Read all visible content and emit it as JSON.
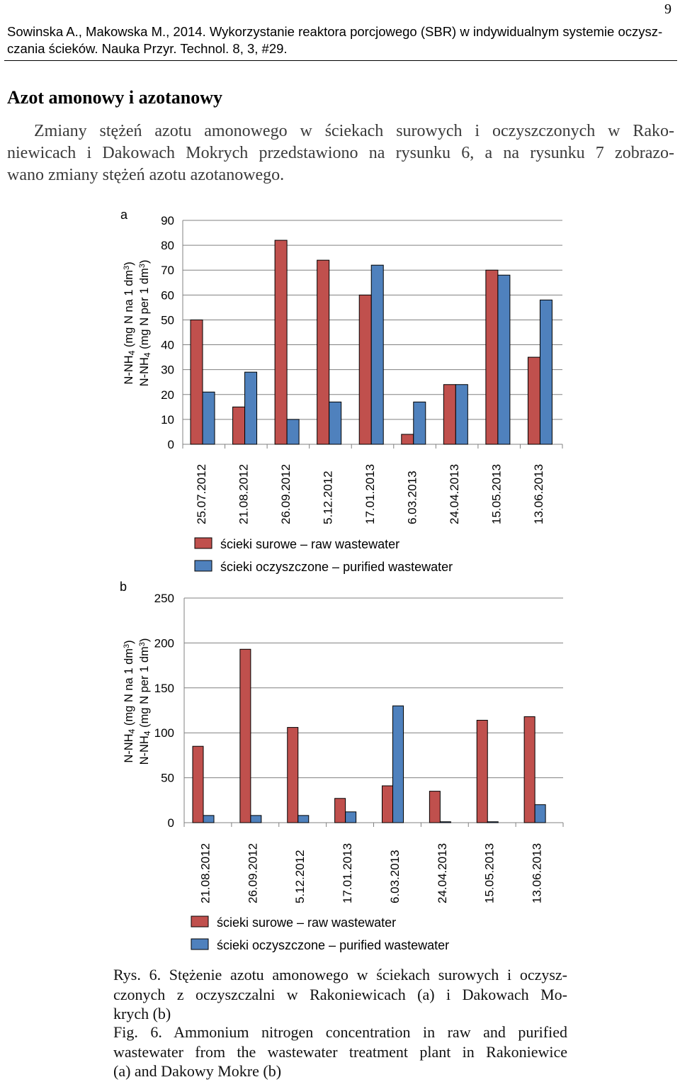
{
  "page_number": "9",
  "header": {
    "citation_line1": "Sowinska A., Makowska M., 2014. Wykorzystanie reaktora porcjowego (SBR) w indywidualnym systemie oczysz-",
    "citation_line2": "czania ścieków. Nauka Przyr. Technol. 8, 3, #29."
  },
  "section": {
    "heading": "Azot amonowy i azotanowy",
    "paragraph_lines": [
      "Zmiany stężeń azotu amonowego w ściekach surowych i oczyszczonych w Rako-",
      "niewicach i Dakowach Mokrych przedstawiono na rysunku 6, a na rysunku 7 zobrazo-",
      "wano zmiany stężeń azotu azotanowego."
    ]
  },
  "colors": {
    "raw": "#C0504D",
    "purified": "#4F81BD",
    "axis": "#808080",
    "grid": "#808080"
  },
  "chart_data": [
    {
      "type": "bar",
      "panel_label": "a",
      "ylabel_line1": "N-NH₄ (mg N na 1 dm³)",
      "ylabel_line2": "N-NH₄ (mg N per 1 dm³)",
      "ylim": [
        0,
        90
      ],
      "yticks": [
        0,
        10,
        20,
        30,
        40,
        50,
        60,
        70,
        80,
        90
      ],
      "categories": [
        "25.07.2012",
        "21.08.2012",
        "26.09.2012",
        "5.12.2012",
        "17.01.2013",
        "6.03.2013",
        "24.04.2013",
        "15.05.2013",
        "13.06.2013"
      ],
      "series": [
        {
          "name": "ścieki surowe – raw wastewater",
          "values": [
            50,
            15,
            82,
            74,
            60,
            4,
            24,
            70,
            35
          ]
        },
        {
          "name": "ścieki oczyszczone – purified wastewater",
          "values": [
            21,
            29,
            10,
            17,
            72,
            17,
            24,
            68,
            58
          ]
        }
      ],
      "grid": true,
      "legend": "bottom"
    },
    {
      "type": "bar",
      "panel_label": "b",
      "ylabel_line1": "N-NH₄ (mg N na 1 dm³)",
      "ylabel_line2": "N-NH₄ (mg N per 1 dm³)",
      "ylim": [
        0,
        250
      ],
      "yticks": [
        0,
        50,
        100,
        150,
        200,
        250
      ],
      "categories": [
        "21.08.2012",
        "26.09.2012",
        "5.12.2012",
        "17.01.2013",
        "6.03.2013",
        "24.04.2013",
        "15.05.2013",
        "13.06.2013"
      ],
      "series": [
        {
          "name": "ścieki surowe – raw wastewater",
          "values": [
            85,
            193,
            106,
            27,
            41,
            35,
            114,
            118
          ]
        },
        {
          "name": "ścieki oczyszczone – purified wastewater",
          "values": [
            8,
            8,
            8,
            12,
            130,
            1,
            1,
            20
          ]
        }
      ],
      "grid": true,
      "legend": "bottom"
    }
  ],
  "caption": {
    "pl_lines": [
      "Rys. 6. Stężenie azotu amonowego w ściekach surowych i oczysz-",
      "czonych z oczyszczalni w Rakoniewicach (a) i Dakowach Mo-",
      "krych (b)"
    ],
    "en_lines": [
      "Fig. 6. Ammonium nitrogen concentration in raw and purified",
      "wastewater from the wastewater treatment plant in Rakoniewice",
      "(a) and Dakowy Mokre (b)"
    ]
  }
}
